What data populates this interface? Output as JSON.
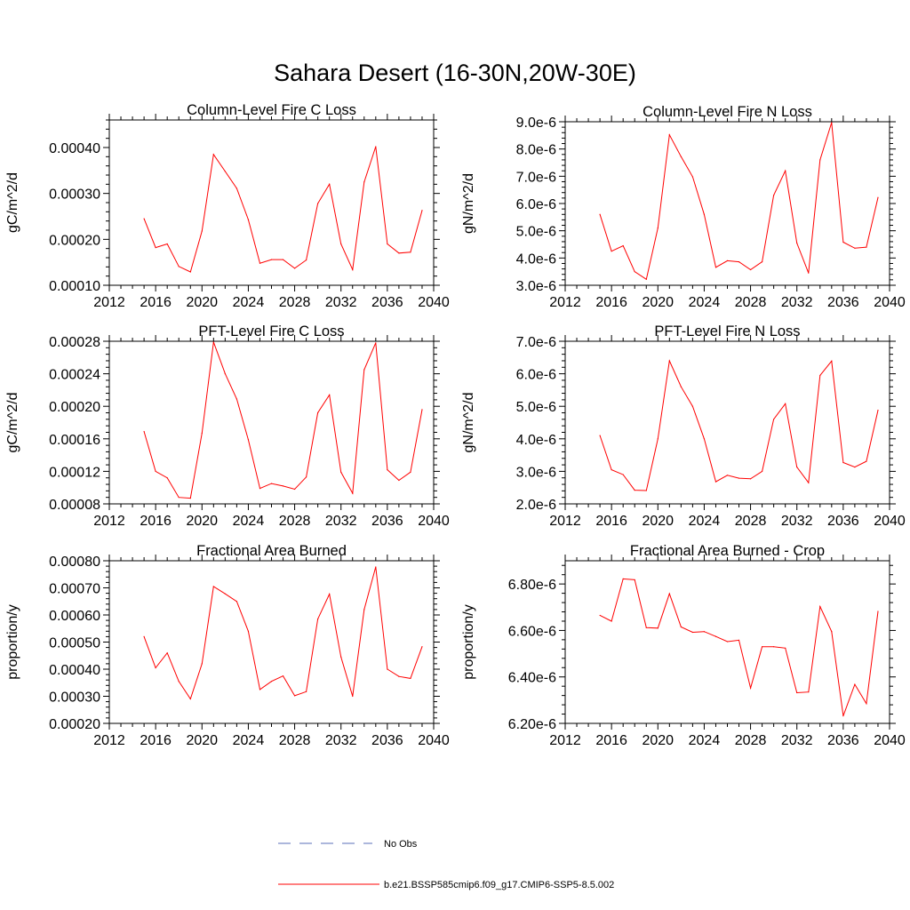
{
  "title": "Sahara Desert (16-30N,20W-30E)",
  "colors": {
    "series": "#ff0000",
    "obs": "#5a6fb8",
    "axis": "#000000"
  },
  "legend": {
    "obs_label": "No Obs",
    "model_label": "b.e21.BSSP585cmip6.f09_g17.CMIP6-SSP5-8.5.002"
  },
  "chart_data": [
    {
      "type": "line",
      "title": "Column-Level Fire C Loss",
      "ylabel": "gC/m^2/d",
      "xlim": [
        2012,
        2040
      ],
      "xticks": [
        2012,
        2016,
        2020,
        2024,
        2028,
        2032,
        2036,
        2040
      ],
      "xticklabels": [
        "2012",
        "2016",
        "2020",
        "2024",
        "2028",
        "2032",
        "2036",
        "2040"
      ],
      "ylim": [
        0.0001,
        0.00046
      ],
      "yticks": [
        0.0001,
        0.0002,
        0.0003,
        0.0004
      ],
      "yticklabels": [
        "0.00010",
        "0.00020",
        "0.00030",
        "0.00040"
      ],
      "x": [
        2015,
        2016,
        2017,
        2018,
        2019,
        2020,
        2021,
        2022,
        2023,
        2024,
        2025,
        2026,
        2027,
        2028,
        2029,
        2030,
        2031,
        2032,
        2033,
        2034,
        2035,
        2036,
        2037,
        2038,
        2039
      ],
      "series": [
        {
          "values": [
            0.000245,
            0.000182,
            0.00019,
            0.000141,
            0.000129,
            0.000218,
            0.000385,
            0.000348,
            0.000311,
            0.000243,
            0.000148,
            0.000156,
            0.000156,
            0.000137,
            0.000155,
            0.000278,
            0.00032,
            0.00019,
            0.000134,
            0.000325,
            0.000402,
            0.00019,
            0.00017,
            0.000172,
            0.000263
          ]
        }
      ]
    },
    {
      "type": "line",
      "title": "Column-Level Fire N Loss",
      "ylabel": "gN/m^2/d",
      "xlim": [
        2012,
        2040
      ],
      "xticks": [
        2012,
        2016,
        2020,
        2024,
        2028,
        2032,
        2036,
        2040
      ],
      "xticklabels": [
        "2012",
        "2016",
        "2020",
        "2024",
        "2028",
        "2032",
        "2036",
        "2040"
      ],
      "ylim": [
        3e-06,
        9e-06
      ],
      "yticks": [
        3e-06,
        4e-06,
        5e-06,
        6e-06,
        7e-06,
        8e-06,
        9e-06
      ],
      "yticklabels": [
        "3.0e-6",
        "4.0e-6",
        "5.0e-6",
        "6.0e-6",
        "7.0e-6",
        "8.0e-6",
        "9.0e-6"
      ],
      "x": [
        2015,
        2016,
        2017,
        2018,
        2019,
        2020,
        2021,
        2022,
        2023,
        2024,
        2025,
        2026,
        2027,
        2028,
        2029,
        2030,
        2031,
        2032,
        2033,
        2034,
        2035,
        2036,
        2037,
        2038,
        2039
      ],
      "series": [
        {
          "values": [
            5.6e-06,
            4.25e-06,
            4.45e-06,
            3.5e-06,
            3.22e-06,
            5.1e-06,
            8.52e-06,
            7.72e-06,
            6.98e-06,
            5.6e-06,
            3.66e-06,
            3.9e-06,
            3.86e-06,
            3.57e-06,
            3.86e-06,
            6.3e-06,
            7.2e-06,
            4.55e-06,
            3.45e-06,
            7.6e-06,
            8.97e-06,
            4.58e-06,
            4.36e-06,
            4.4e-06,
            6.22e-06
          ]
        }
      ]
    },
    {
      "type": "line",
      "title": "PFT-Level Fire C Loss",
      "ylabel": "gC/m^2/d",
      "xlim": [
        2012,
        2040
      ],
      "xticks": [
        2012,
        2016,
        2020,
        2024,
        2028,
        2032,
        2036,
        2040
      ],
      "xticklabels": [
        "2012",
        "2016",
        "2020",
        "2024",
        "2028",
        "2032",
        "2036",
        "2040"
      ],
      "ylim": [
        8e-05,
        0.00028
      ],
      "yticks": [
        8e-05,
        0.00012,
        0.00016,
        0.0002,
        0.00024,
        0.00028
      ],
      "yticklabels": [
        "0.00008",
        "0.00012",
        "0.00016",
        "0.00020",
        "0.00024",
        "0.00028"
      ],
      "x": [
        2015,
        2016,
        2017,
        2018,
        2019,
        2020,
        2021,
        2022,
        2023,
        2024,
        2025,
        2026,
        2027,
        2028,
        2029,
        2030,
        2031,
        2032,
        2033,
        2034,
        2035,
        2036,
        2037,
        2038,
        2039
      ],
      "series": [
        {
          "values": [
            0.000169,
            0.00012,
            0.000112,
            8.8e-05,
            8.7e-05,
            0.000167,
            0.000279,
            0.00024,
            0.000209,
            0.000159,
            9.9e-05,
            0.000105,
            0.000102,
            9.8e-05,
            0.000113,
            0.000192,
            0.000214,
            0.000119,
            9.3e-05,
            0.000245,
            0.000278,
            0.000122,
            0.000109,
            0.000119,
            0.000196
          ]
        }
      ]
    },
    {
      "type": "line",
      "title": "PFT-Level Fire N Loss",
      "ylabel": "gN/m^2/d",
      "xlim": [
        2012,
        2040
      ],
      "xticks": [
        2012,
        2016,
        2020,
        2024,
        2028,
        2032,
        2036,
        2040
      ],
      "xticklabels": [
        "2012",
        "2016",
        "2020",
        "2024",
        "2028",
        "2032",
        "2036",
        "2040"
      ],
      "ylim": [
        2e-06,
        7e-06
      ],
      "yticks": [
        2e-06,
        3e-06,
        4e-06,
        5e-06,
        6e-06,
        7e-06
      ],
      "yticklabels": [
        "2.0e-6",
        "3.0e-6",
        "4.0e-6",
        "5.0e-6",
        "6.0e-6",
        "7.0e-6"
      ],
      "x": [
        2015,
        2016,
        2017,
        2018,
        2019,
        2020,
        2021,
        2022,
        2023,
        2024,
        2025,
        2026,
        2027,
        2028,
        2029,
        2030,
        2031,
        2032,
        2033,
        2034,
        2035,
        2036,
        2037,
        2038,
        2039
      ],
      "series": [
        {
          "values": [
            4.1e-06,
            3.05e-06,
            2.9e-06,
            2.42e-06,
            2.41e-06,
            4e-06,
            6.4e-06,
            5.6e-06,
            5e-06,
            4e-06,
            2.68e-06,
            2.88e-06,
            2.79e-06,
            2.77e-06,
            3e-06,
            4.6e-06,
            5.08e-06,
            3.13e-06,
            2.65e-06,
            5.95e-06,
            6.39e-06,
            3.27e-06,
            3.13e-06,
            3.31e-06,
            4.88e-06
          ]
        }
      ]
    },
    {
      "type": "line",
      "title": "Fractional Area Burned",
      "ylabel": "proportion/y",
      "xlim": [
        2012,
        2040
      ],
      "xticks": [
        2012,
        2016,
        2020,
        2024,
        2028,
        2032,
        2036,
        2040
      ],
      "xticklabels": [
        "2012",
        "2016",
        "2020",
        "2024",
        "2028",
        "2032",
        "2036",
        "2040"
      ],
      "ylim": [
        0.0002,
        0.0008
      ],
      "yticks": [
        0.0002,
        0.0003,
        0.0004,
        0.0005,
        0.0006,
        0.0007,
        0.0008
      ],
      "yticklabels": [
        "0.00020",
        "0.00030",
        "0.00040",
        "0.00050",
        "0.00060",
        "0.00070",
        "0.00080"
      ],
      "x": [
        2015,
        2016,
        2017,
        2018,
        2019,
        2020,
        2021,
        2022,
        2023,
        2024,
        2025,
        2026,
        2027,
        2028,
        2029,
        2030,
        2031,
        2032,
        2033,
        2034,
        2035,
        2036,
        2037,
        2038,
        2039
      ],
      "series": [
        {
          "values": [
            0.00052,
            0.000405,
            0.00046,
            0.000355,
            0.00029,
            0.00042,
            0.000705,
            0.000678,
            0.00065,
            0.00054,
            0.000325,
            0.000355,
            0.000375,
            0.000302,
            0.000317,
            0.000585,
            0.000677,
            0.000445,
            0.0003,
            0.00062,
            0.000777,
            0.0004,
            0.000373,
            0.000366,
            0.000483
          ]
        }
      ]
    },
    {
      "type": "line",
      "title": "Fractional Area Burned - Crop",
      "ylabel": "proportion/y",
      "xlim": [
        2012,
        2040
      ],
      "xticks": [
        2012,
        2016,
        2020,
        2024,
        2028,
        2032,
        2036,
        2040
      ],
      "xticklabels": [
        "2012",
        "2016",
        "2020",
        "2024",
        "2028",
        "2032",
        "2036",
        "2040"
      ],
      "ylim": [
        6.2e-06,
        6.9e-06
      ],
      "yticks": [
        6.2e-06,
        6.4e-06,
        6.6e-06,
        6.8e-06
      ],
      "yticklabels": [
        "6.20e-6",
        "6.40e-6",
        "6.60e-6",
        "6.80e-6"
      ],
      "x": [
        2015,
        2016,
        2017,
        2018,
        2019,
        2020,
        2021,
        2022,
        2023,
        2024,
        2025,
        2026,
        2027,
        2028,
        2029,
        2030,
        2031,
        2032,
        2033,
        2034,
        2035,
        2036,
        2037,
        2038,
        2039
      ],
      "series": [
        {
          "values": [
            6.665e-06,
            6.64e-06,
            6.822e-06,
            6.818e-06,
            6.612e-06,
            6.61e-06,
            6.758e-06,
            6.615e-06,
            6.592e-06,
            6.595e-06,
            6.574e-06,
            6.552e-06,
            6.558e-06,
            6.352e-06,
            6.53e-06,
            6.53e-06,
            6.524e-06,
            6.332e-06,
            6.335e-06,
            6.703e-06,
            6.595e-06,
            6.232e-06,
            6.368e-06,
            6.285e-06,
            6.682e-06
          ]
        }
      ]
    }
  ]
}
